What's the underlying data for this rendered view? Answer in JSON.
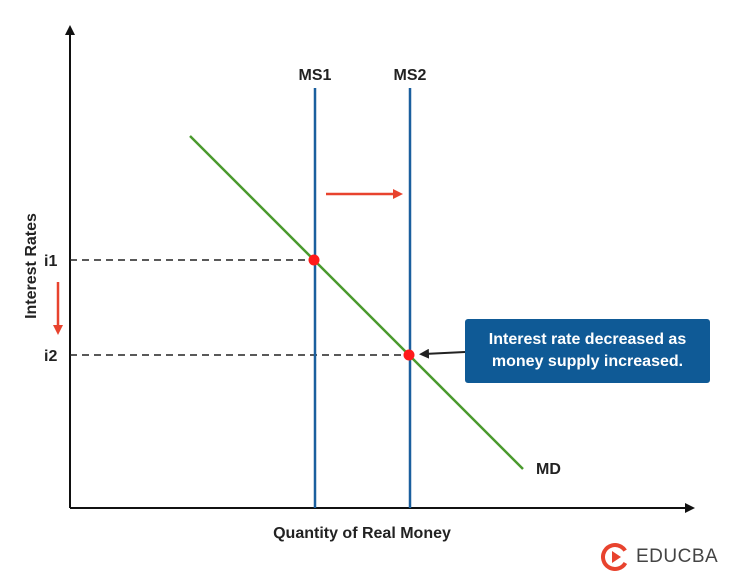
{
  "diagram": {
    "axes": {
      "x_label": "Quantity of Real Money",
      "y_label": "Interest Rates"
    },
    "curves": [
      {
        "name": "MS1",
        "type": "vertical",
        "color": "#1a5f9e"
      },
      {
        "name": "MS2",
        "type": "vertical",
        "color": "#1a5f9e"
      },
      {
        "name": "MD",
        "type": "downward-sloping",
        "color": "#4a9a2e"
      }
    ],
    "rate_labels": {
      "high": "i1",
      "low": "i2"
    },
    "shift_arrow_color": "#e8432e",
    "equilibrium_color": "#ff1a1a",
    "callout_text": "Interest rate decreased as money supply increased.",
    "callout_color": "#0f5a96"
  },
  "brand": {
    "name": "EDUCBA",
    "logo_color": "#e8432e"
  }
}
